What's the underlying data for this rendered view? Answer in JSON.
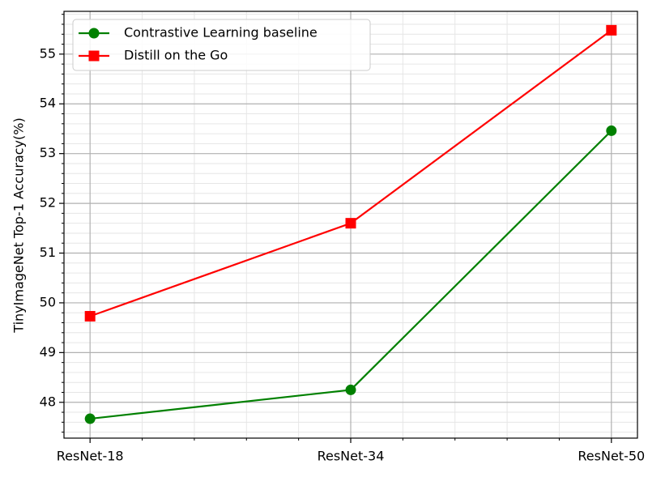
{
  "chart_data": {
    "type": "line",
    "ylabel": "TinyImageNet Top-1 Accuracy(%)",
    "categories": [
      "ResNet-18",
      "ResNet-34",
      "ResNet-50"
    ],
    "series": [
      {
        "name": "Contrastive Learning baseline",
        "color": "#008000",
        "marker": "circle",
        "values": [
          47.67,
          48.25,
          53.46
        ]
      },
      {
        "name": "Distill on the Go",
        "color": "#ff0000",
        "marker": "square",
        "values": [
          49.73,
          51.6,
          55.48
        ]
      }
    ],
    "xlim": [
      -0.1,
      2.1
    ],
    "xminorticks": [
      0.2,
      0.4,
      0.6,
      0.8,
      1.2,
      1.4,
      1.6,
      1.8
    ],
    "ylim": [
      47.28,
      55.86
    ],
    "yticks": [
      48,
      49,
      50,
      51,
      52,
      53,
      54,
      55
    ],
    "yminorticks": [
      47.4,
      47.6,
      47.8,
      48.2,
      48.4,
      48.6,
      48.8,
      49.2,
      49.4,
      49.6,
      49.8,
      50.2,
      50.4,
      50.6,
      50.8,
      51.2,
      51.4,
      51.6,
      51.8,
      52.2,
      52.4,
      52.6,
      52.8,
      53.2,
      53.4,
      53.6,
      53.8,
      54.2,
      54.4,
      54.6,
      54.8,
      55.2,
      55.4,
      55.6,
      55.8
    ],
    "grid": true,
    "minor_grid": true,
    "legend": "upper left"
  }
}
